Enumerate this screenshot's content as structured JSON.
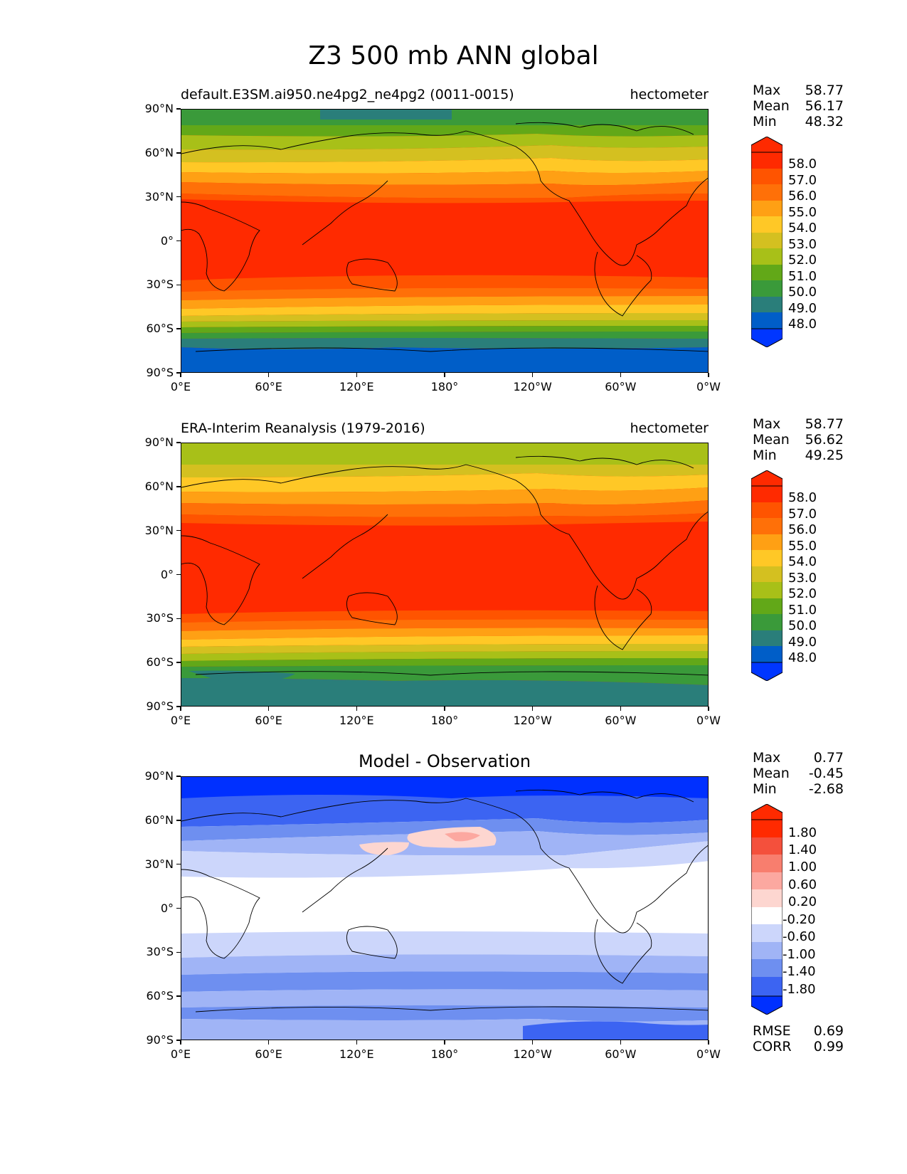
{
  "figure_title": "Z3 500 mb ANN global",
  "axes": {
    "y_ticks": [
      "90°N",
      "60°N",
      "30°N",
      "0°",
      "30°S",
      "60°S",
      "90°S"
    ],
    "x_ticks": [
      "0°E",
      "60°E",
      "120°E",
      "180°",
      "120°W",
      "60°W",
      "0°W"
    ]
  },
  "panels": [
    {
      "title_left": "default.E3SM.ai950.ne4pg2_ne4pg2 (0011-0015)",
      "title_right": "hectometer",
      "stats": [
        {
          "label": "Max",
          "value": "58.77"
        },
        {
          "label": "Mean",
          "value": "56.17"
        },
        {
          "label": "Min",
          "value": "48.32"
        }
      ],
      "levels": [
        "58.0",
        "57.0",
        "56.0",
        "55.0",
        "54.0",
        "53.0",
        "52.0",
        "51.0",
        "50.0",
        "49.0",
        "48.0"
      ]
    },
    {
      "title_left": "ERA-Interim Reanalysis (1979-2016)",
      "title_right": "hectometer",
      "stats": [
        {
          "label": "Max",
          "value": "58.77"
        },
        {
          "label": "Mean",
          "value": "56.62"
        },
        {
          "label": "Min",
          "value": "49.25"
        }
      ],
      "levels": [
        "58.0",
        "57.0",
        "56.0",
        "55.0",
        "54.0",
        "53.0",
        "52.0",
        "51.0",
        "50.0",
        "49.0",
        "48.0"
      ]
    },
    {
      "title_center": "Model - Observation",
      "stats": [
        {
          "label": "Max",
          "value": "0.77"
        },
        {
          "label": "Mean",
          "value": "-0.45"
        },
        {
          "label": "Min",
          "value": "-2.68"
        }
      ],
      "levels": [
        "1.80",
        "1.40",
        "1.00",
        "0.60",
        "0.20",
        "-0.20",
        "-0.60",
        "-1.00",
        "-1.40",
        "-1.80"
      ],
      "extra_stats": [
        {
          "label": "RMSE",
          "value": "0.69"
        },
        {
          "label": "CORR",
          "value": "0.99"
        }
      ]
    }
  ],
  "colors": {
    "abs_scale": [
      "#0036ff",
      "#005ec8",
      "#2a7e7a",
      "#3a9a3a",
      "#62a818",
      "#a8c018",
      "#d4c020",
      "#ffc826",
      "#ffa014",
      "#ff7008",
      "#ff5400",
      "#ff2a00"
    ],
    "diff_scale": [
      "#0030ff",
      "#3c64f2",
      "#6e8ff0",
      "#a0b4f6",
      "#ccd6fb",
      "#ffffff",
      "#fdd6d0",
      "#fca8a0",
      "#f87e6e",
      "#f4503c",
      "#ff2a00"
    ]
  }
}
